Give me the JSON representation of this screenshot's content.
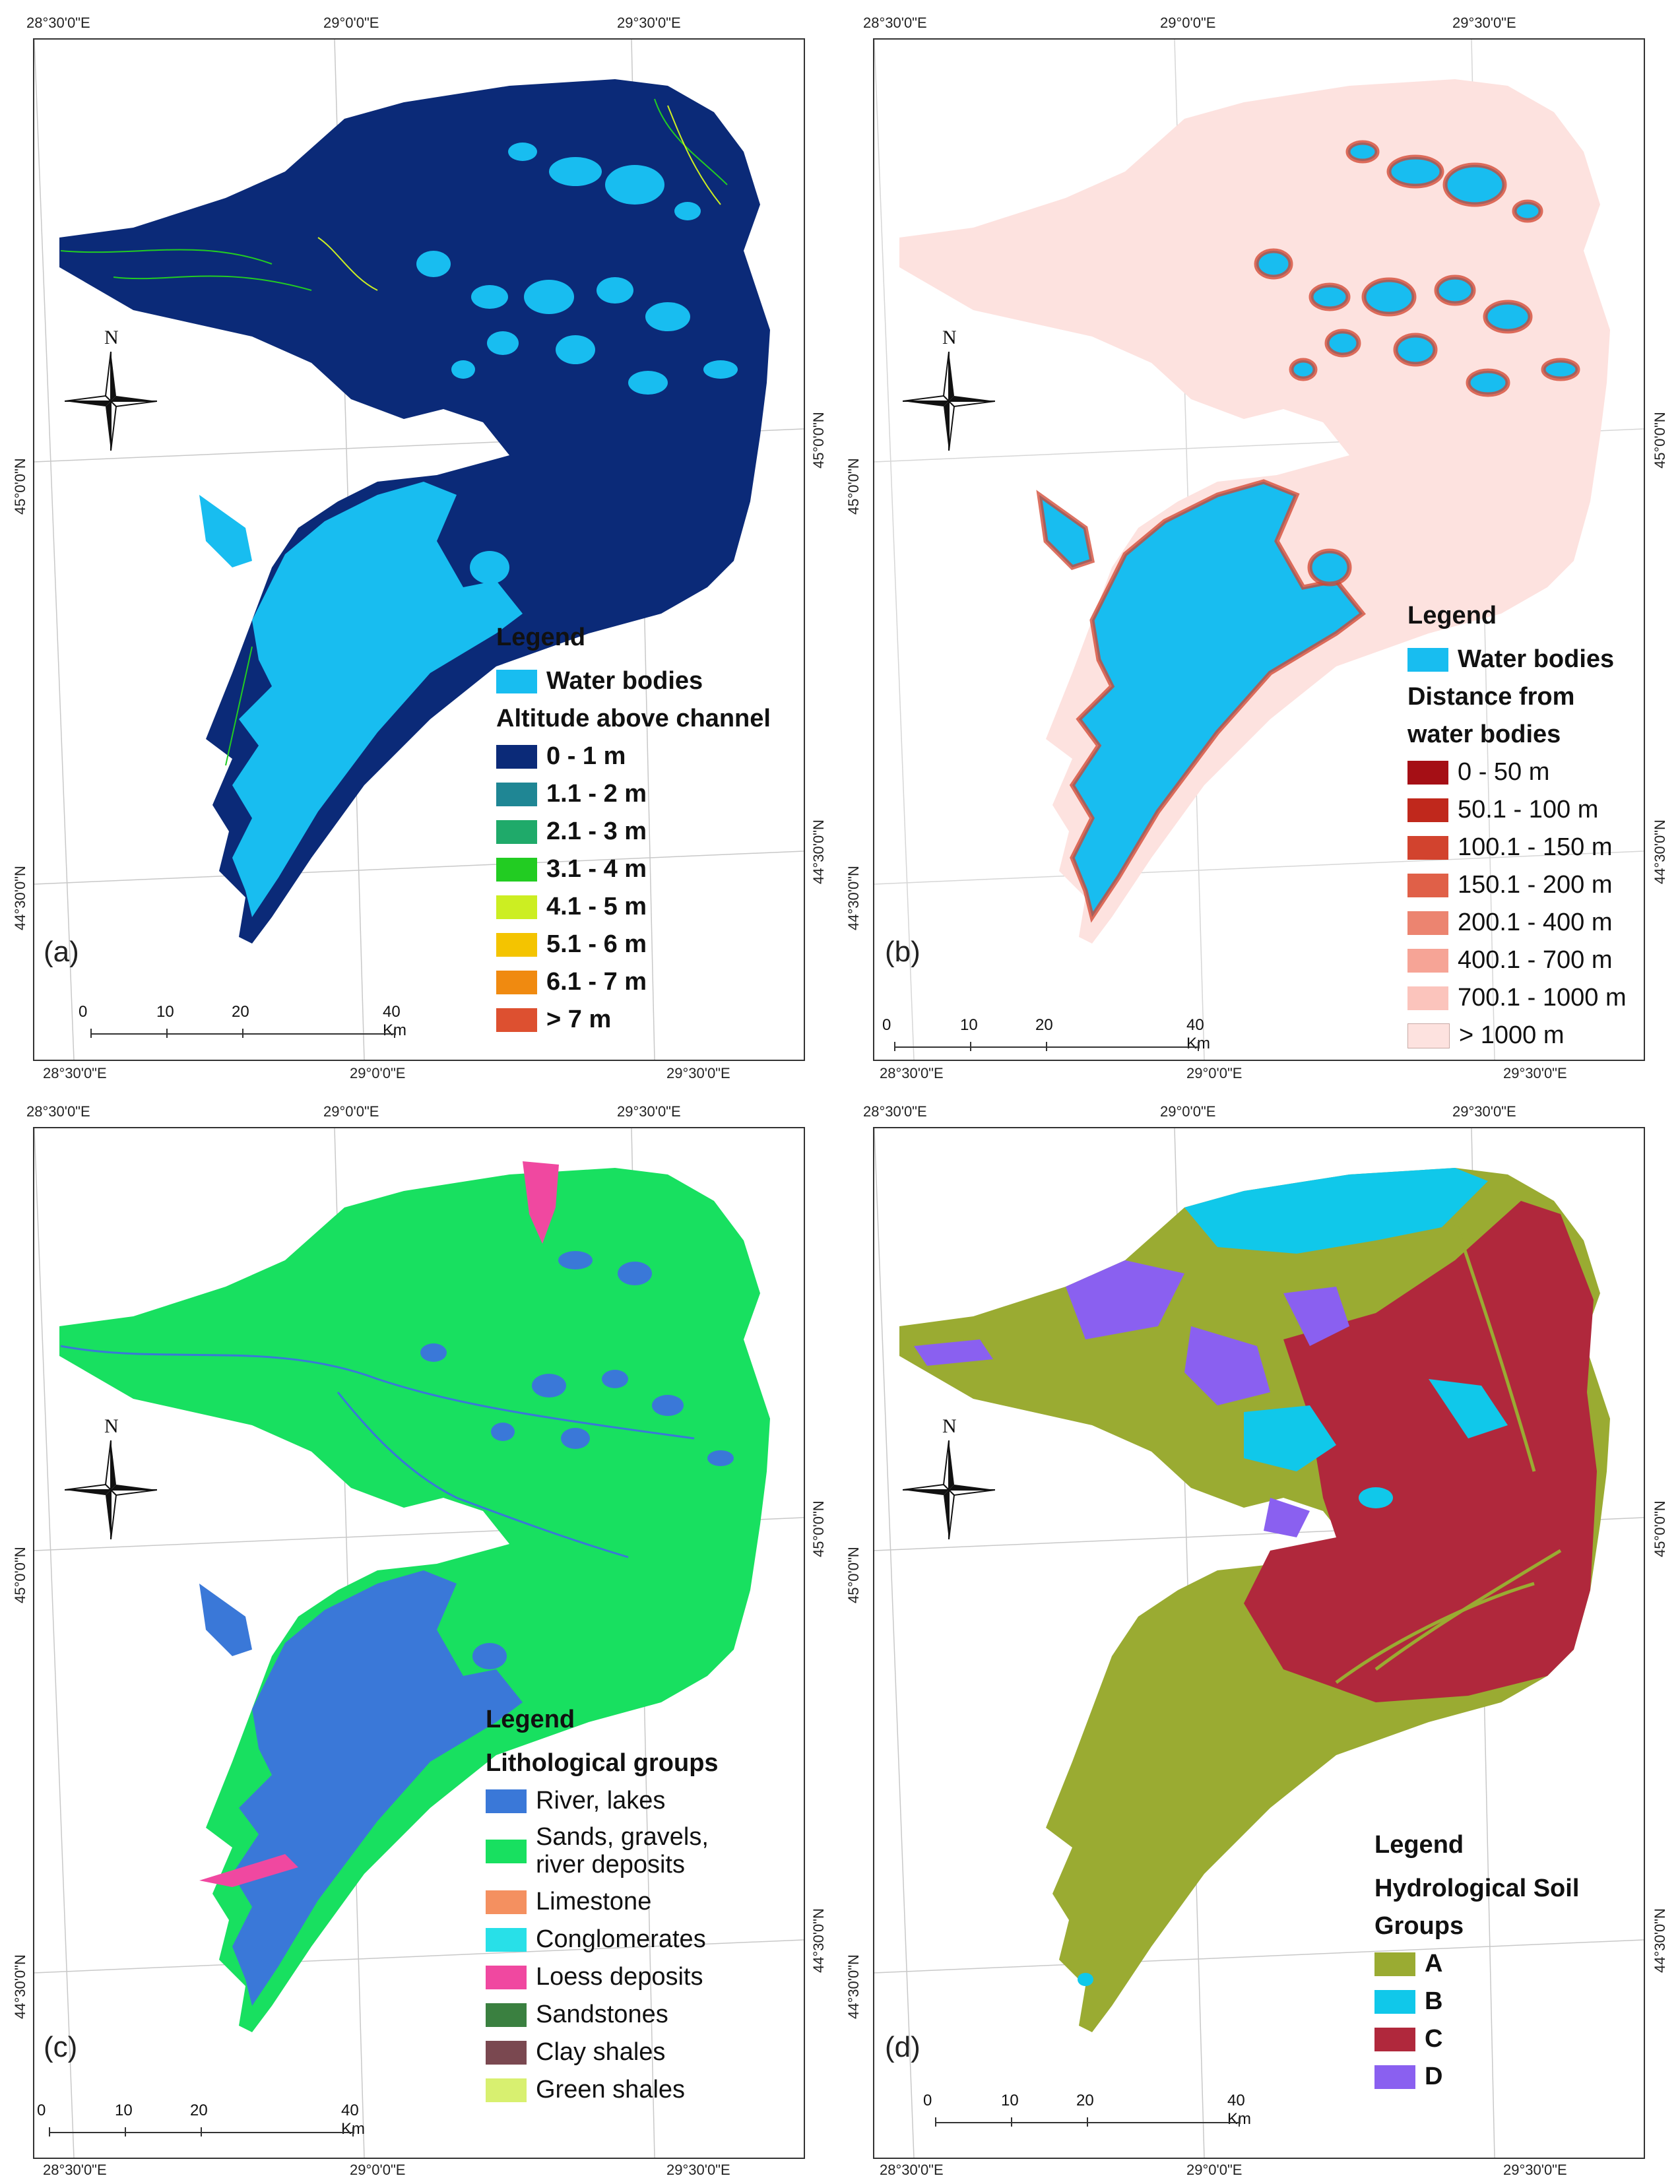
{
  "coords": {
    "lon_1": "28°30'0\"E",
    "lon_2": "29°0'0\"E",
    "lon_3": "29°30'0\"E",
    "lat_1": "45°0'0\"N",
    "lat_2": "44°30'0\"N"
  },
  "north_label": "N",
  "scale": {
    "t0": "0",
    "t1": "10",
    "t2": "20",
    "t3": "40 Km"
  },
  "panels": {
    "a": {
      "label": "(a)",
      "legend_title": "Legend",
      "water_label": "Water bodies",
      "subtitle": "Altitude above channel",
      "classes": [
        {
          "label": "0 - 1 m",
          "color": "#0b2a78"
        },
        {
          "label": "1.1 - 2 m",
          "color": "#1f8694"
        },
        {
          "label": "2.1 - 3 m",
          "color": "#1faa6a"
        },
        {
          "label": "3.1 - 4 m",
          "color": "#22cc22"
        },
        {
          "label": "4.1 - 5 m",
          "color": "#ccee22"
        },
        {
          "label": "5.1 - 6 m",
          "color": "#f4c400"
        },
        {
          "label": "6.1 - 7 m",
          "color": "#f08a10"
        },
        {
          "label": "> 7 m",
          "color": "#dd5030"
        }
      ]
    },
    "b": {
      "label": "(b)",
      "legend_title": "Legend",
      "water_label": "Water bodies",
      "subtitle_1": "Distance from",
      "subtitle_2": "water bodies",
      "classes": [
        {
          "label": "0 - 50 m",
          "color": "#a50f15"
        },
        {
          "label": "50.1 - 100 m",
          "color": "#c0281c"
        },
        {
          "label": "100.1 - 150 m",
          "color": "#d2432e"
        },
        {
          "label": "150.1 - 200 m",
          "color": "#e06048"
        },
        {
          "label": "200.1 - 400 m",
          "color": "#ec8470"
        },
        {
          "label": "400.1 - 700 m",
          "color": "#f6a496"
        },
        {
          "label": "700.1 - 1000 m",
          "color": "#fbc4bc"
        },
        {
          "label": "> 1000 m",
          "color": "#fde2df"
        }
      ]
    },
    "c": {
      "label": "(c)",
      "legend_title": "Legend",
      "subtitle": "Lithological groups",
      "classes": [
        {
          "label": "River, lakes",
          "color": "#3a78d8"
        },
        {
          "label_1": "Sands, gravels,",
          "label_2": "river deposits",
          "color": "#18e060"
        },
        {
          "label": "Limestone",
          "color": "#f49060"
        },
        {
          "label": "Conglomerates",
          "color": "#28e0e8"
        },
        {
          "label": "Loess deposits",
          "color": "#f048a0"
        },
        {
          "label": "Sandstones",
          "color": "#3a8040"
        },
        {
          "label": "Clay shales",
          "color": "#7a4850"
        },
        {
          "label": "Green shales",
          "color": "#d8f070"
        }
      ]
    },
    "d": {
      "label": "(d)",
      "legend_title": "Legend",
      "subtitle_1": "Hydrological Soil",
      "subtitle_2": "Groups",
      "classes": [
        {
          "label": "A",
          "color": "#9aab32"
        },
        {
          "label": "B",
          "color": "#10c8ea"
        },
        {
          "label": "C",
          "color": "#b0283c"
        },
        {
          "label": "D",
          "color": "#8a60f0"
        }
      ]
    }
  },
  "colors": {
    "water": "#18bdf0",
    "landA": "#0b2a78",
    "landB": "#fde2df",
    "landC": "#18e060",
    "landD": "#9aab32"
  }
}
